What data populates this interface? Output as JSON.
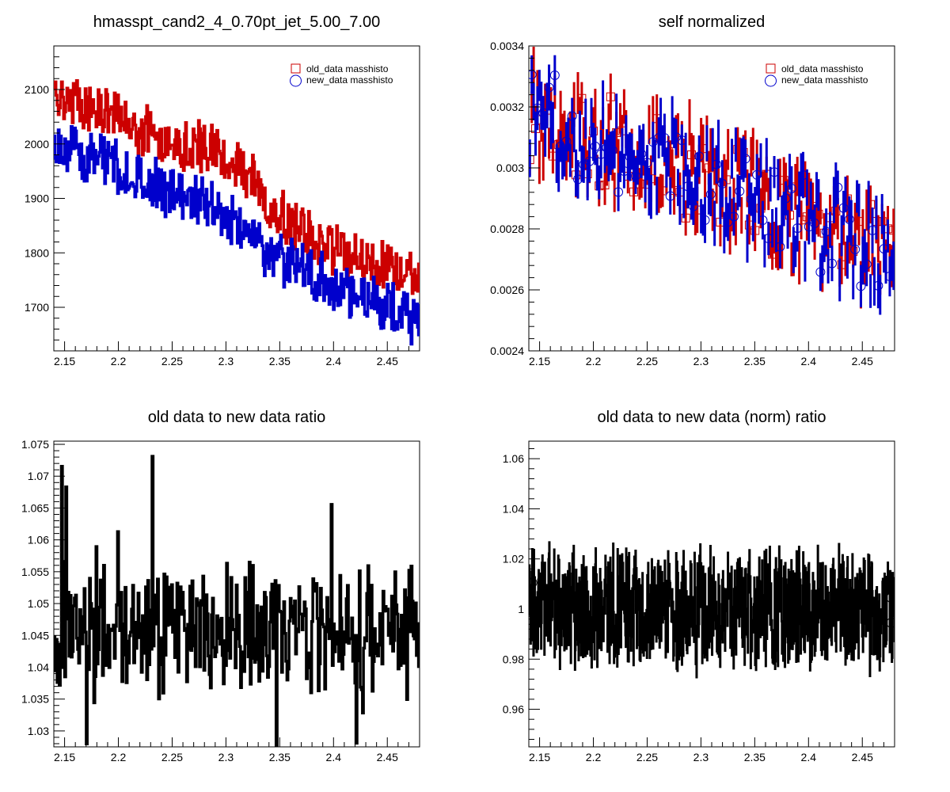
{
  "chart_data": [
    {
      "id": "p1",
      "type": "line",
      "title": "hmasspt_cand2_4_0.70pt_jet_5.00_7.00",
      "xlim": [
        2.14,
        2.48
      ],
      "ylim": [
        1620,
        2180
      ],
      "xticks": [
        2.15,
        2.2,
        2.25,
        2.3,
        2.35,
        2.4,
        2.45
      ],
      "yticks": [
        1700,
        1800,
        1900,
        2000,
        2100
      ],
      "yminor_step": 20,
      "legend": {
        "position": "top-right",
        "markers": [
          "square",
          "circle"
        ]
      },
      "series": [
        {
          "name": "old_data masshisto",
          "color": "#cc0000",
          "x": [
            2.14,
            2.16,
            2.18,
            2.2,
            2.22,
            2.24,
            2.26,
            2.28,
            2.3,
            2.32,
            2.34,
            2.36,
            2.38,
            2.4,
            2.42,
            2.44,
            2.46,
            2.48
          ],
          "y": [
            2090,
            2075,
            2065,
            2045,
            2025,
            2010,
            2000,
            1995,
            1975,
            1940,
            1885,
            1855,
            1825,
            1810,
            1790,
            1780,
            1770,
            1745
          ],
          "spread": 55
        },
        {
          "name": "new_data masshisto",
          "color": "#0000cc",
          "x": [
            2.14,
            2.16,
            2.18,
            2.2,
            2.22,
            2.24,
            2.26,
            2.28,
            2.3,
            2.32,
            2.34,
            2.36,
            2.38,
            2.4,
            2.42,
            2.44,
            2.46,
            2.48
          ],
          "y": [
            2000,
            1985,
            1975,
            1955,
            1935,
            1915,
            1910,
            1895,
            1870,
            1840,
            1800,
            1785,
            1765,
            1740,
            1720,
            1705,
            1690,
            1670
          ],
          "spread": 55
        }
      ]
    },
    {
      "id": "p2",
      "type": "scatter",
      "title": "self normalized",
      "xlim": [
        2.14,
        2.48
      ],
      "ylim": [
        0.0024,
        0.0034
      ],
      "xticks": [
        2.15,
        2.2,
        2.25,
        2.3,
        2.35,
        2.4,
        2.45
      ],
      "yticks": [
        0.0024,
        0.0026,
        0.0028,
        0.003,
        0.0032,
        0.0034
      ],
      "yminor_step": 4e-05,
      "legend": {
        "position": "top-right",
        "markers": [
          "square",
          "circle"
        ]
      },
      "series": [
        {
          "name": "old_data masshisto",
          "color": "#cc0000",
          "marker": "square",
          "x": [
            2.14,
            2.2,
            2.26,
            2.32,
            2.38,
            2.44,
            2.48
          ],
          "y": [
            0.00318,
            0.0031,
            0.00303,
            0.00295,
            0.00285,
            0.00277,
            0.00268
          ],
          "spread": 0.00016
        },
        {
          "name": "new_data masshisto",
          "color": "#0000cc",
          "marker": "circle",
          "x": [
            2.14,
            2.2,
            2.26,
            2.32,
            2.38,
            2.44,
            2.48
          ],
          "y": [
            0.00318,
            0.0031,
            0.00303,
            0.00295,
            0.00285,
            0.00277,
            0.00268
          ],
          "spread": 0.00016
        }
      ]
    },
    {
      "id": "p3",
      "type": "line",
      "title": "old data to new data ratio",
      "xlim": [
        2.14,
        2.48
      ],
      "ylim": [
        1.0275,
        1.0755
      ],
      "xticks": [
        2.15,
        2.2,
        2.25,
        2.3,
        2.35,
        2.4,
        2.45
      ],
      "yticks": [
        1.03,
        1.035,
        1.04,
        1.045,
        1.05,
        1.055,
        1.06,
        1.065,
        1.07,
        1.075
      ],
      "yminor_step": 0.001,
      "series": [
        {
          "name": "",
          "color": "#000000",
          "x": [
            2.14,
            2.48
          ],
          "y": [
            1.0465,
            1.0465
          ],
          "spread": 0.011
        }
      ]
    },
    {
      "id": "p4",
      "type": "line",
      "title": "old data to new data (norm) ratio",
      "xlim": [
        2.14,
        2.48
      ],
      "ylim": [
        0.945,
        1.067
      ],
      "xticks": [
        2.15,
        2.2,
        2.25,
        2.3,
        2.35,
        2.4,
        2.45
      ],
      "yticks": [
        0.96,
        0.98,
        1.0,
        1.02,
        1.04,
        1.06
      ],
      "ytick_labels": [
        "0.96",
        "0.98",
        "1",
        "1.02",
        "1.04",
        "1.06"
      ],
      "yminor_step": 0.004,
      "series": [
        {
          "name": "",
          "color": "#000000",
          "x": [
            2.14,
            2.48
          ],
          "y": [
            1.0,
            1.0
          ],
          "spread": 0.028
        }
      ]
    }
  ]
}
